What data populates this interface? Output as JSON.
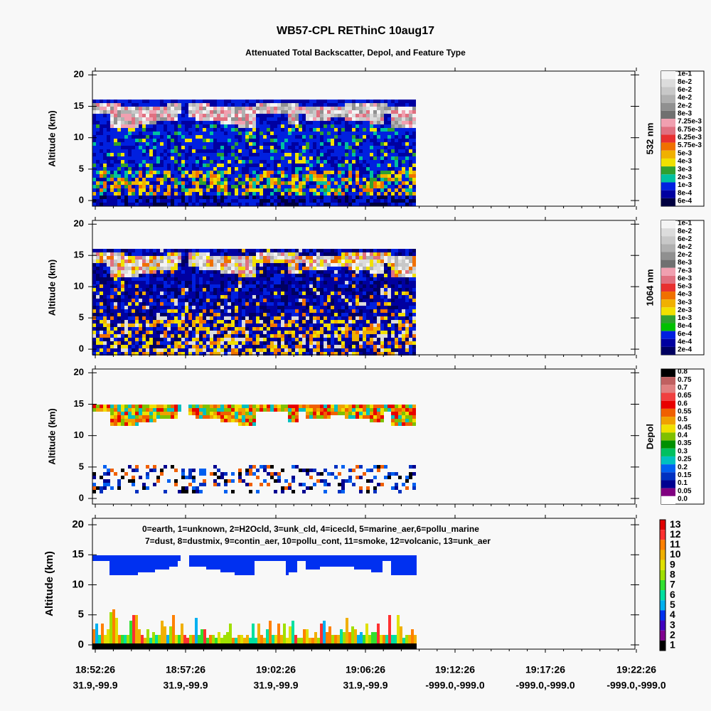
{
  "title": "WB57-CPL REThinC 10aug17",
  "subtitle": "Attenuated Total Backscatter, Depol, and Feature Type",
  "x_tick_labels": {
    "times": [
      "18:52:26",
      "18:57:26",
      "19:02:26",
      "19:06:26",
      "19:12:26",
      "19:17:26",
      "19:22:26"
    ],
    "locations": [
      "31.9,-99.9",
      "31.9,-99.9",
      "31.9,-99.9",
      "31.9,-99.9",
      "-999.0,-999.0",
      "-999.0,-999.0",
      "-999.0,-999.0"
    ]
  },
  "chart_data": [
    {
      "type": "heatmap",
      "ylabel": "Altitude (km)",
      "ylim": [
        -0.9,
        20.6
      ],
      "yticks": [
        0,
        5,
        10,
        15,
        20
      ],
      "colorbar": {
        "label": "532 nm",
        "ticks": [
          {
            "value": 0.1,
            "label": "1e-1"
          },
          {
            "value": 0.08,
            "label": "8e-2"
          },
          {
            "value": 0.06,
            "label": "6e-2"
          },
          {
            "value": 0.04,
            "label": "4e-2"
          },
          {
            "value": 0.02,
            "label": "2e-2"
          },
          {
            "value": 0.008,
            "label": "8e-3"
          },
          {
            "value": 0.00725,
            "label": "7.25e-3"
          },
          {
            "value": 0.00675,
            "label": "6.75e-3"
          },
          {
            "value": 0.00625,
            "label": "6.25e-3"
          },
          {
            "value": 0.00575,
            "label": "5.75e-3"
          },
          {
            "value": 0.005,
            "label": "5e-3"
          },
          {
            "value": 0.004,
            "label": "4e-3"
          },
          {
            "value": 0.003,
            "label": "3e-3"
          },
          {
            "value": 0.002,
            "label": "2e-3"
          },
          {
            "value": 0.001,
            "label": "1e-3"
          },
          {
            "value": 0.0008,
            "label": "8e-4"
          },
          {
            "value": 0.0006,
            "label": "6e-4"
          }
        ],
        "colors": [
          "#f4f4f4",
          "#dcdcdc",
          "#c8c8c8",
          "#b0b0b0",
          "#909090",
          "#707070",
          "#f0a0b0",
          "#e07080",
          "#e83030",
          "#f07000",
          "#f0b000",
          "#f0e000",
          "#30a030",
          "#00c0a0",
          "#0020e0",
          "#0000a0",
          "#000040"
        ]
      }
    },
    {
      "type": "heatmap",
      "ylabel": "Altitude (km)",
      "ylim": [
        -0.9,
        20.6
      ],
      "yticks": [
        0,
        5,
        10,
        15,
        20
      ],
      "colorbar": {
        "label": "1064 nm",
        "ticks": [
          {
            "value": 0.1,
            "label": "1e-1"
          },
          {
            "value": 0.08,
            "label": "8e-2"
          },
          {
            "value": 0.06,
            "label": "6e-2"
          },
          {
            "value": 0.04,
            "label": "4e-2"
          },
          {
            "value": 0.02,
            "label": "2e-2"
          },
          {
            "value": 0.008,
            "label": "8e-3"
          },
          {
            "value": 0.007,
            "label": "7e-3"
          },
          {
            "value": 0.006,
            "label": "6e-3"
          },
          {
            "value": 0.005,
            "label": "5e-3"
          },
          {
            "value": 0.004,
            "label": "4e-3"
          },
          {
            "value": 0.003,
            "label": "3e-3"
          },
          {
            "value": 0.002,
            "label": "2e-3"
          },
          {
            "value": 0.001,
            "label": "1e-3"
          },
          {
            "value": 0.0008,
            "label": "8e-4"
          },
          {
            "value": 0.0006,
            "label": "6e-4"
          },
          {
            "value": 0.0004,
            "label": "4e-4"
          },
          {
            "value": 0.0002,
            "label": "2e-4"
          }
        ],
        "colors": [
          "#f4f4f4",
          "#dcdcdc",
          "#c8c8c8",
          "#b0b0b0",
          "#909090",
          "#707070",
          "#f0a0b0",
          "#e07080",
          "#e83030",
          "#f07000",
          "#f0b000",
          "#f0e000",
          "#30a030",
          "#00c000",
          "#0020e0",
          "#0000a0",
          "#000060"
        ]
      }
    },
    {
      "type": "heatmap",
      "ylabel": "Altitude (km)",
      "ylim": [
        -0.9,
        20.6
      ],
      "yticks": [
        0,
        5,
        10,
        15,
        20
      ],
      "colorbar": {
        "label": "Depol",
        "ticks": [
          0.8,
          0.75,
          0.7,
          0.65,
          0.6,
          0.55,
          0.5,
          0.45,
          0.4,
          0.35,
          0.3,
          0.25,
          0.2,
          0.15,
          0.1,
          0.05,
          {
            "value": 0,
            "label": "0.0"
          }
        ],
        "colors": [
          "#000000",
          "#c06060",
          "#e08080",
          "#f04040",
          "#e80000",
          "#f06000",
          "#f0a000",
          "#f0e000",
          "#80c000",
          "#009000",
          "#00c060",
          "#00c0c0",
          "#0060f0",
          "#0030c0",
          "#000090",
          "#800080",
          "#ffffff"
        ]
      }
    },
    {
      "type": "heatmap",
      "ylabel": "Altitude (km)",
      "ylim": [
        -0.71,
        21.07
      ],
      "yticks": [
        0,
        5,
        10,
        15,
        20
      ],
      "legend_text": [
        "0=earth, 1=unknown, 2=H2Ocld, 3=unk_cld, 4=icecld, 5=marine_aer,6=pollu_marine",
        "7=dust, 8=dustmix, 9=contin_aer, 10=pollu_cont, 11=smoke, 12=volcanic, 13=unk_aer"
      ],
      "colorbar": {
        "ticks": [
          13,
          12,
          11,
          10,
          9,
          8,
          7,
          6,
          5,
          4,
          3,
          2,
          1
        ],
        "colors": [
          "#e00000",
          "#ff3030",
          "#ff8000",
          "#f0b000",
          "#e0e000",
          "#a0e000",
          "#30e030",
          "#00e0a0",
          "#00b0f0",
          "#0030f0",
          "#4000c0",
          "#800090",
          "#000000"
        ]
      }
    }
  ]
}
